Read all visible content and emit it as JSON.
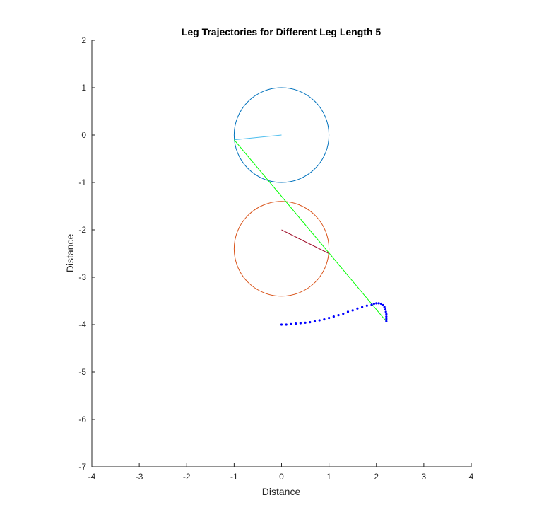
{
  "chart_data": {
    "type": "line",
    "title": "Leg Trajectories for Different Leg Length 5",
    "xlabel": "Distance",
    "ylabel": "Distance",
    "xlim": [
      -4,
      4
    ],
    "ylim": [
      -7,
      2
    ],
    "xticks": [
      -4,
      -3,
      -2,
      -1,
      0,
      1,
      2,
      3,
      4
    ],
    "yticks": [
      -7,
      -6,
      -5,
      -4,
      -3,
      -2,
      -1,
      0,
      1,
      2
    ],
    "grid": false,
    "colors": {
      "upper_circle": "#0072bd",
      "lower_circle": "#d95319",
      "crank": "#4dbeee",
      "rocker": "#a2142f",
      "leg": "#00ff00",
      "trajectory": "#0000ff"
    },
    "circles": [
      {
        "cx": 0,
        "cy": 0,
        "r": 1
      },
      {
        "cx": 0,
        "cy": -2.4,
        "r": 1
      }
    ],
    "segments": [
      {
        "x": [
          0,
          -1
        ],
        "y": [
          0,
          -0.1
        ]
      },
      {
        "x": [
          0,
          1
        ],
        "y": [
          -2.0,
          -2.5
        ]
      },
      {
        "x": [
          -1,
          2.2
        ],
        "y": [
          -0.1,
          -3.92
        ]
      }
    ],
    "trajectory": {
      "x": [
        0.0,
        0.1,
        0.2,
        0.3,
        0.4,
        0.5,
        0.6,
        0.7,
        0.8,
        0.9,
        1.0,
        1.1,
        1.2,
        1.3,
        1.4,
        1.5,
        1.6,
        1.7,
        1.8,
        1.9,
        1.95,
        2.0,
        2.05,
        2.1,
        2.14,
        2.17,
        2.19,
        2.2,
        2.21,
        2.21,
        2.21,
        2.21
      ],
      "y": [
        -4.0,
        -4.0,
        -3.99,
        -3.98,
        -3.97,
        -3.96,
        -3.95,
        -3.93,
        -3.91,
        -3.89,
        -3.86,
        -3.83,
        -3.8,
        -3.77,
        -3.73,
        -3.7,
        -3.66,
        -3.63,
        -3.6,
        -3.58,
        -3.56,
        -3.55,
        -3.55,
        -3.56,
        -3.59,
        -3.63,
        -3.68,
        -3.73,
        -3.78,
        -3.83,
        -3.88,
        -3.93
      ]
    }
  }
}
